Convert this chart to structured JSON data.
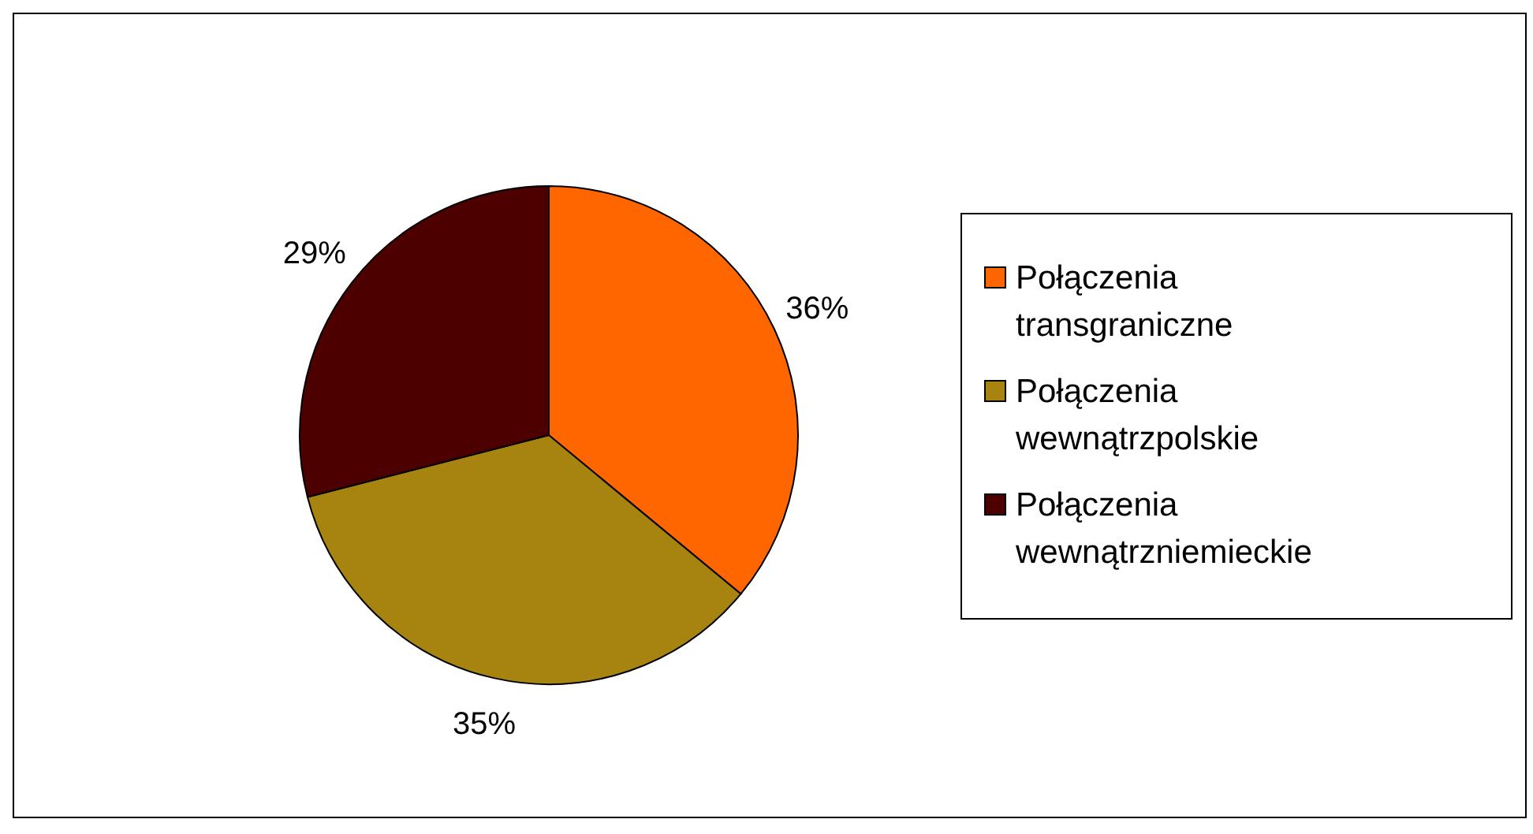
{
  "chart_data": {
    "type": "pie",
    "categories": [
      "Połączenia transgraniczne",
      "Połączenia wewnątrzpolskie",
      "Połączenia wewnątrzniemieckie"
    ],
    "values": [
      36,
      35,
      29
    ],
    "colors": [
      "#ff6600",
      "#a6840f",
      "#4d0000"
    ],
    "legend": "right",
    "value_labels": [
      "36%",
      "35%",
      "29%"
    ]
  }
}
